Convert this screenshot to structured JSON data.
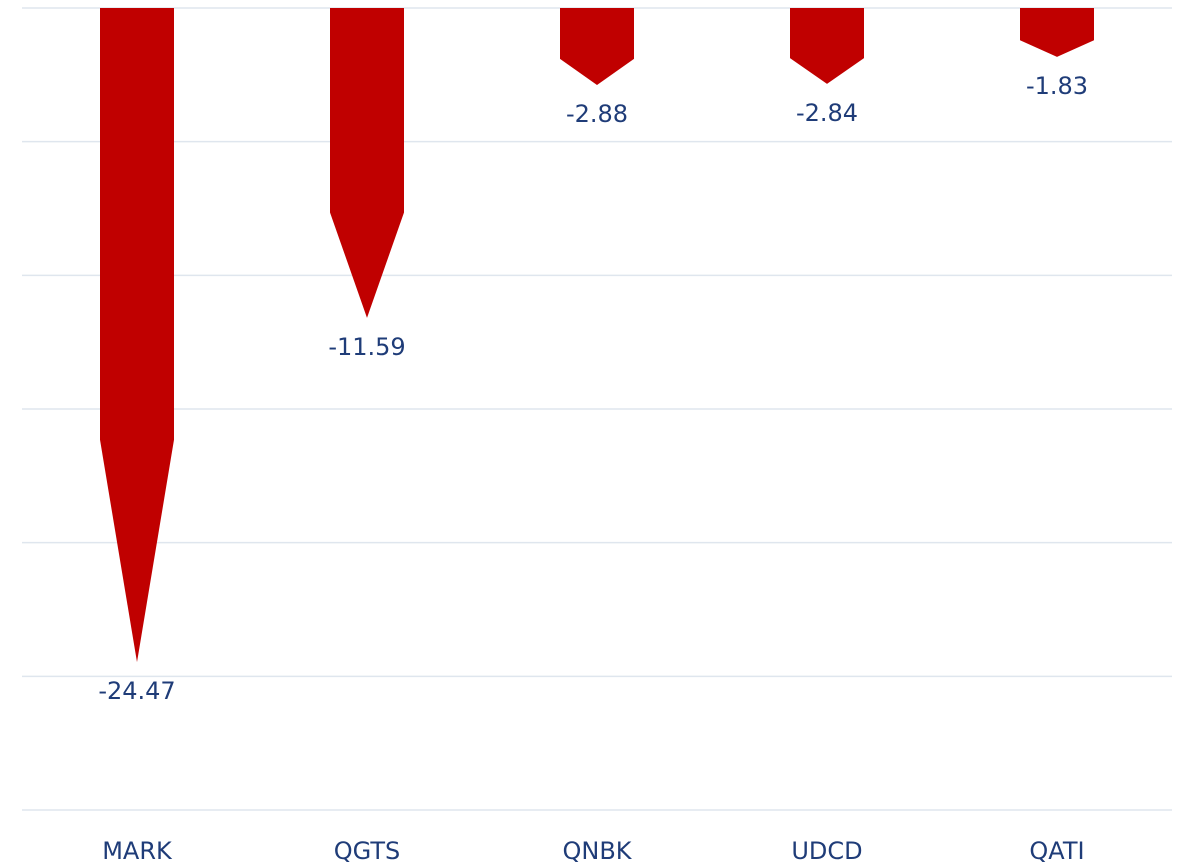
{
  "chart_data": {
    "type": "bar",
    "categories": [
      "MARK",
      "QGTS",
      "QNBK",
      "UDCD",
      "QATI"
    ],
    "values": [
      -24.47,
      -11.59,
      -2.88,
      -2.84,
      -1.83
    ],
    "color": "#c00000",
    "ylim": [
      -30,
      0
    ],
    "yticks": [
      0,
      -5,
      -10,
      -15,
      -20,
      -25,
      -30
    ],
    "grid": true
  }
}
